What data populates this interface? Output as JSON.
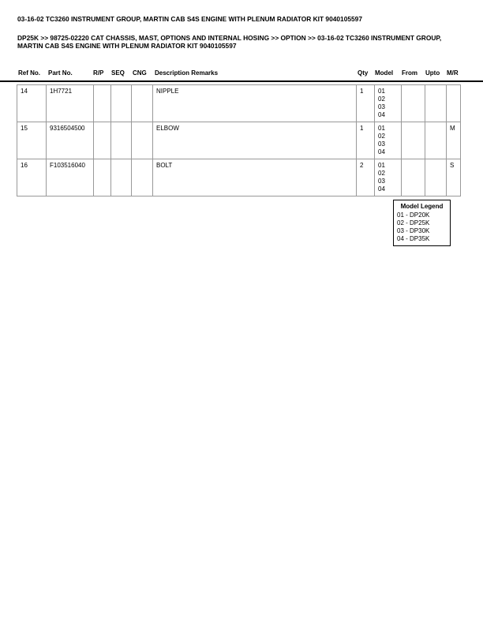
{
  "title": "03-16-02 TC3260 INSTRUMENT GROUP, MARTIN CAB S4S ENGINE WITH PLENUM RADIATOR KIT 9040105597",
  "breadcrumb": "DP25K >> 98725-02220 CAT CHASSIS, MAST, OPTIONS AND INTERNAL HOSING >> OPTION >> 03-16-02 TC3260 INSTRUMENT GROUP, MARTIN CAB S4S ENGINE WITH PLENUM RADIATOR KIT 9040105597",
  "columns": [
    "Ref No.",
    "Part No.",
    "R/P",
    "SEQ",
    "CNG",
    "Description Remarks",
    "Qty",
    "Model",
    "From",
    "Upto",
    "M/R"
  ],
  "rows": [
    {
      "ref": "14",
      "part": "1H7721",
      "rp": "",
      "seq": "",
      "cng": "",
      "desc": "NIPPLE",
      "qty": "1",
      "models": [
        "01",
        "02",
        "03",
        "04"
      ],
      "from": "",
      "upto": "",
      "mr": ""
    },
    {
      "ref": "15",
      "part": "9316504500",
      "rp": "",
      "seq": "",
      "cng": "",
      "desc": "ELBOW",
      "qty": "1",
      "models": [
        "01",
        "02",
        "03",
        "04"
      ],
      "from": "",
      "upto": "",
      "mr": "M"
    },
    {
      "ref": "16",
      "part": "F103516040",
      "rp": "",
      "seq": "",
      "cng": "",
      "desc": "BOLT",
      "qty": "2",
      "models": [
        "01",
        "02",
        "03",
        "04"
      ],
      "from": "",
      "upto": "",
      "mr": "S"
    }
  ],
  "legend": {
    "title": "Model Legend",
    "items": [
      "01 - DP20K",
      "02 - DP25K",
      "03 - DP30K",
      "04 - DP35K"
    ]
  }
}
